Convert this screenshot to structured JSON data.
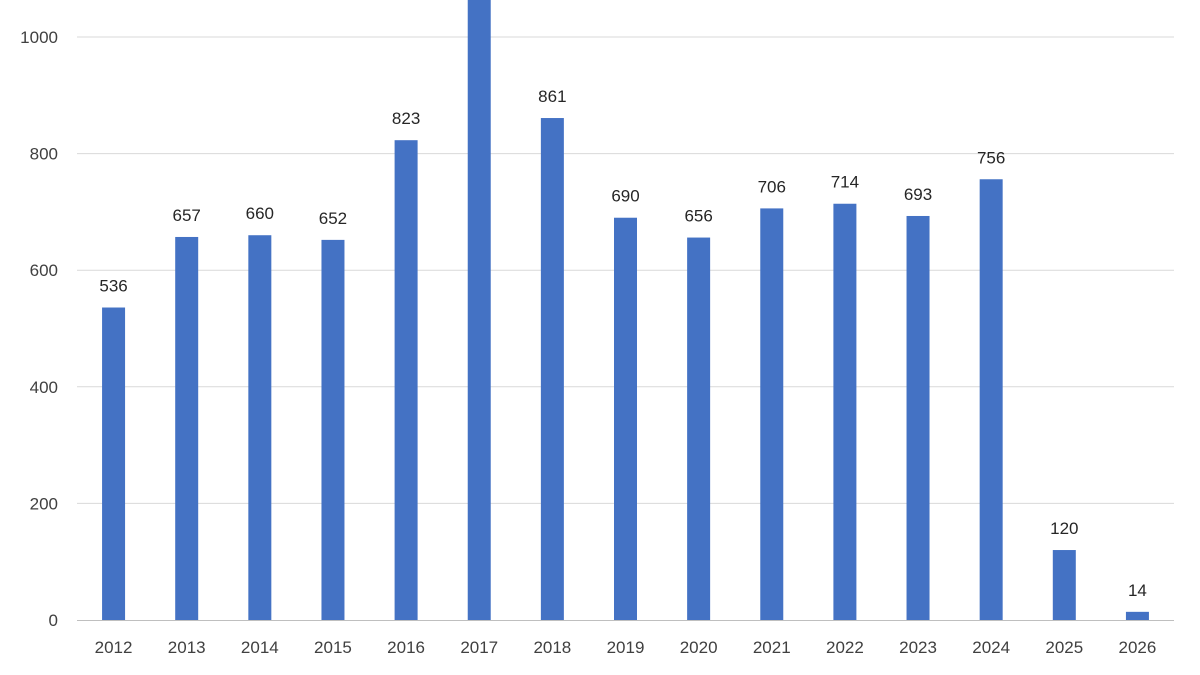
{
  "chart_data": {
    "type": "bar",
    "categories": [
      "2012",
      "2013",
      "2014",
      "2015",
      "2016",
      "2017",
      "2018",
      "2019",
      "2020",
      "2021",
      "2022",
      "2023",
      "2024",
      "2025",
      "2026"
    ],
    "values": [
      536,
      657,
      660,
      652,
      823,
      null,
      861,
      690,
      656,
      706,
      714,
      693,
      756,
      120,
      14
    ],
    "data_labels": [
      "536",
      "657",
      "660",
      "652",
      "823",
      "",
      "861",
      "690",
      "656",
      "706",
      "714",
      "693",
      "756",
      "120",
      "14"
    ],
    "clipped_above_axis": [
      "2017"
    ],
    "ylim": [
      0,
      1000
    ],
    "yticks": [
      0,
      200,
      400,
      600,
      800,
      1000
    ],
    "grid": true,
    "legend": "none",
    "bar_color": "#4472C4",
    "grid_color": "#D9D9D9",
    "axis_color": "#BFBFBF"
  }
}
